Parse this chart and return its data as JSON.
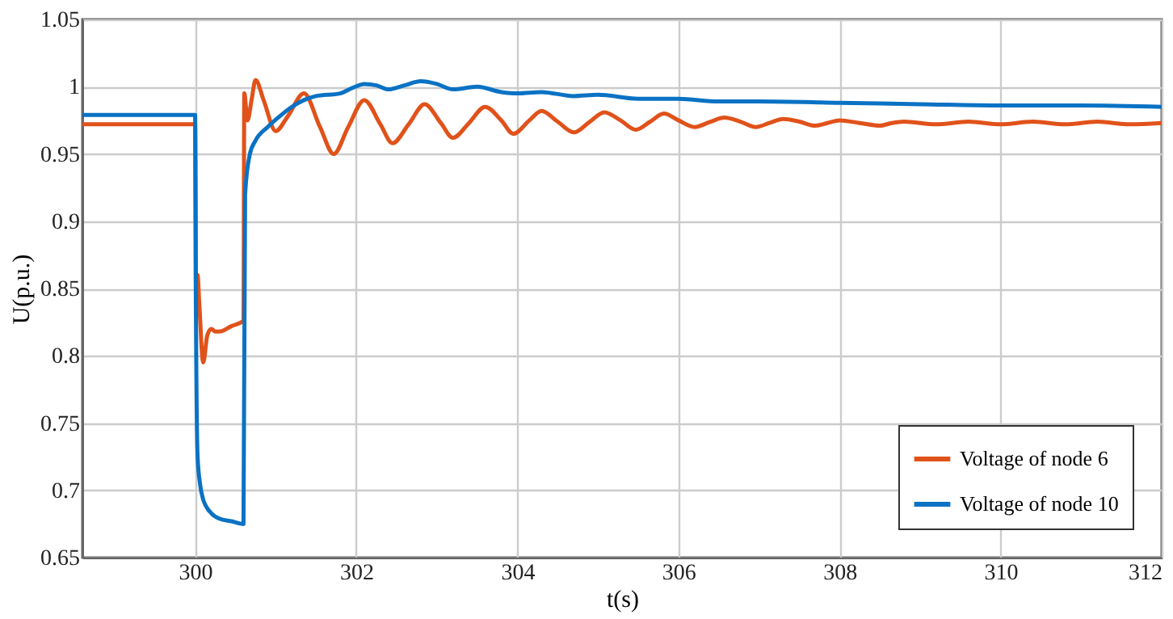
{
  "chart_data": {
    "type": "line",
    "xlabel": "t(s)",
    "ylabel": "U(p.u.)",
    "xlim": [
      298.6,
      312
    ],
    "xticks": [
      300,
      302,
      304,
      306,
      308,
      310,
      312
    ],
    "ylim": [
      0.65,
      1.05
    ],
    "yticks": [
      0.65,
      0.7,
      0.75,
      0.8,
      0.85,
      0.9,
      0.95,
      1,
      1.05
    ],
    "grid": true,
    "legend": "bottom right",
    "line_style": "solid",
    "marker": "none",
    "series": [
      {
        "name": "Voltage of node 6",
        "color": "#e0521a",
        "x": [
          298.6,
          300.0,
          300.01,
          300.03,
          300.05,
          300.1,
          300.15,
          300.2,
          300.25,
          300.3,
          300.45,
          300.6,
          300.61,
          300.65,
          300.7,
          300.75,
          300.85,
          301.0,
          301.15,
          301.35,
          301.55,
          301.72,
          301.9,
          302.1,
          302.3,
          302.45,
          302.65,
          302.85,
          303.05,
          303.2,
          303.4,
          303.6,
          303.8,
          303.95,
          304.15,
          304.3,
          304.5,
          304.7,
          304.9,
          305.08,
          305.28,
          305.47,
          305.65,
          305.82,
          306.0,
          306.2,
          306.4,
          306.57,
          306.77,
          306.96,
          307.13,
          307.3,
          307.5,
          307.7,
          307.85,
          308.0,
          308.25,
          308.5,
          308.65,
          308.8,
          309.2,
          309.6,
          310.0,
          310.4,
          310.8,
          311.2,
          311.6,
          312.0
        ],
        "values": [
          0.972,
          0.972,
          0.83,
          0.86,
          0.84,
          0.795,
          0.815,
          0.82,
          0.818,
          0.818,
          0.822,
          0.826,
          0.995,
          0.975,
          0.99,
          1.005,
          0.99,
          0.967,
          0.978,
          0.995,
          0.97,
          0.95,
          0.97,
          0.99,
          0.972,
          0.958,
          0.972,
          0.987,
          0.973,
          0.962,
          0.973,
          0.985,
          0.975,
          0.965,
          0.975,
          0.982,
          0.974,
          0.966,
          0.974,
          0.981,
          0.975,
          0.968,
          0.974,
          0.98,
          0.975,
          0.97,
          0.974,
          0.977,
          0.974,
          0.97,
          0.973,
          0.976,
          0.974,
          0.971,
          0.973,
          0.975,
          0.973,
          0.971,
          0.973,
          0.974,
          0.972,
          0.974,
          0.972,
          0.974,
          0.972,
          0.974,
          0.972,
          0.973
        ]
      },
      {
        "name": "Voltage of node 10",
        "color": "#0a72c4",
        "x": [
          298.6,
          300.0,
          300.01,
          300.03,
          300.06,
          300.1,
          300.2,
          300.3,
          300.45,
          300.6,
          300.62,
          300.68,
          300.75,
          300.9,
          301.05,
          301.2,
          301.35,
          301.5,
          301.8,
          301.95,
          302.1,
          302.25,
          302.4,
          302.6,
          302.8,
          303.0,
          303.2,
          303.5,
          303.8,
          304.0,
          304.3,
          304.7,
          305.0,
          305.5,
          306.0,
          306.5,
          307.0,
          308.0,
          309.0,
          310.0,
          311.0,
          312.0
        ],
        "values": [
          0.979,
          0.979,
          0.83,
          0.725,
          0.705,
          0.693,
          0.683,
          0.679,
          0.677,
          0.675,
          0.92,
          0.95,
          0.96,
          0.97,
          0.978,
          0.985,
          0.99,
          0.993,
          0.995,
          0.999,
          1.002,
          1.001,
          0.998,
          1.001,
          1.004,
          1.002,
          0.998,
          1.0,
          0.996,
          0.995,
          0.996,
          0.993,
          0.994,
          0.991,
          0.991,
          0.989,
          0.989,
          0.988,
          0.987,
          0.986,
          0.986,
          0.985
        ]
      }
    ]
  }
}
